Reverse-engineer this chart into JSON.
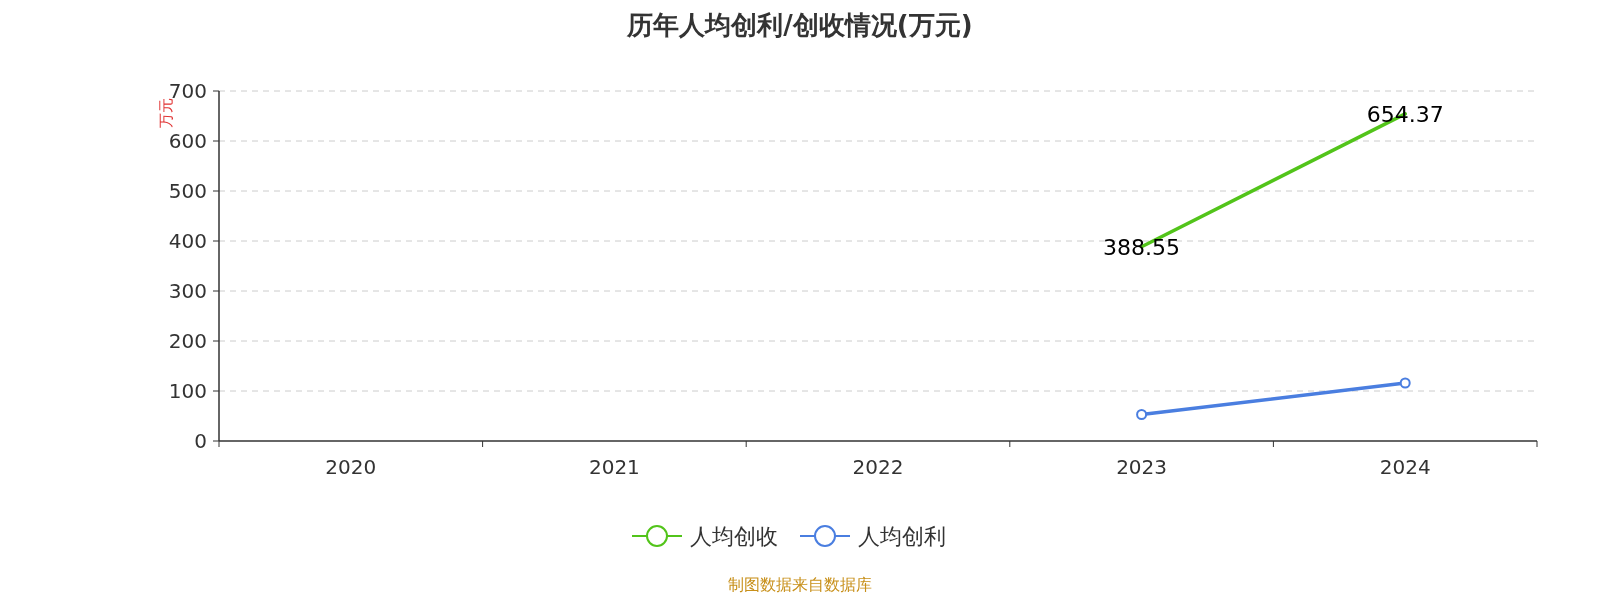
{
  "chart_data": {
    "type": "line",
    "title": "历年人均创利/创收情况(万元)",
    "ylabel": "万元",
    "categories": [
      "2020",
      "2021",
      "2022",
      "2023",
      "2024"
    ],
    "series": [
      {
        "name": "人均创收",
        "color": "#52c41a",
        "marker": "none",
        "values": [
          null,
          null,
          null,
          388.55,
          654.37
        ],
        "value_labels": [
          null,
          null,
          null,
          "388.55",
          "654.37"
        ]
      },
      {
        "name": "人均创利",
        "color": "#4a7ee0",
        "marker": "circle",
        "values": [
          null,
          null,
          null,
          53,
          116
        ]
      }
    ],
    "ylim": [
      0,
      700
    ],
    "yticks": [
      0,
      100,
      200,
      300,
      400,
      500,
      600,
      700
    ],
    "grid": "y",
    "legend": "bottom",
    "line_style": "solid",
    "annotations": [
      "制图数据来自数据库"
    ]
  }
}
